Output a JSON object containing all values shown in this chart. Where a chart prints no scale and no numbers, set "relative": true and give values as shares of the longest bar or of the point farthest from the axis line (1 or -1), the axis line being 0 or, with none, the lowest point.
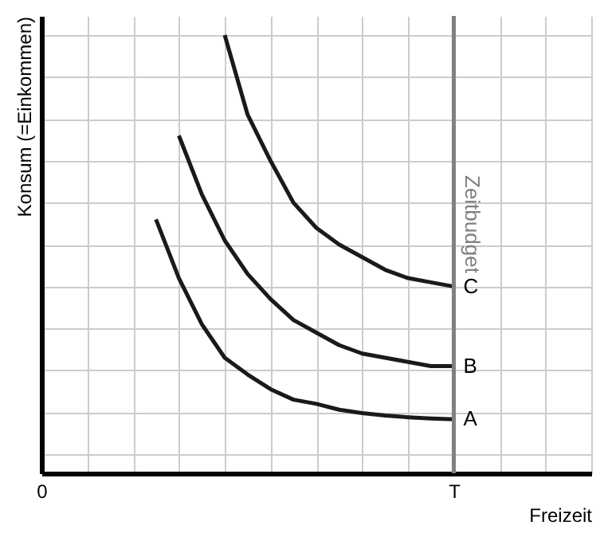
{
  "chart_data": {
    "type": "line",
    "relative": true,
    "xlabel": "Freizeit",
    "ylabel": "Konsum (=Einkommen)",
    "categories": [
      "0",
      null,
      null,
      null,
      null,
      null,
      null,
      null,
      null,
      null,
      null,
      null,
      null,
      null,
      null,
      null,
      null,
      null,
      "T",
      null,
      null,
      null,
      null,
      null,
      null
    ],
    "grid": true,
    "tick_labels": "x",
    "marker": "none",
    "line_style": "solid",
    "series": [
      {
        "name": "A",
        "color": "#1a1a1a",
        "values": [
          null,
          null,
          null,
          null,
          null,
          0.56,
          0.42,
          0.31,
          0.23,
          0.19,
          0.155,
          0.13,
          0.12,
          0.106,
          0.098,
          0.092,
          0.088,
          0.085,
          0.083,
          null,
          null,
          null,
          null,
          null,
          null
        ]
      },
      {
        "name": "B",
        "color": "#1a1a1a",
        "values": [
          null,
          null,
          null,
          null,
          null,
          null,
          0.76,
          0.62,
          0.51,
          0.43,
          0.37,
          0.32,
          0.29,
          0.26,
          0.24,
          0.23,
          0.22,
          0.21,
          0.21,
          null,
          null,
          null,
          null,
          null,
          null
        ]
      },
      {
        "name": "C",
        "color": "#1a1a1a",
        "values": [
          null,
          null,
          null,
          null,
          null,
          null,
          null,
          null,
          1.0,
          0.81,
          0.7,
          0.6,
          0.54,
          0.5,
          0.47,
          0.44,
          0.42,
          0.41,
          0.4,
          null,
          null,
          null,
          null,
          null,
          null
        ]
      }
    ],
    "ref_lines": [
      {
        "axis": "x",
        "value": "T",
        "label": "Zeitbudget",
        "color": "#808080"
      }
    ]
  }
}
